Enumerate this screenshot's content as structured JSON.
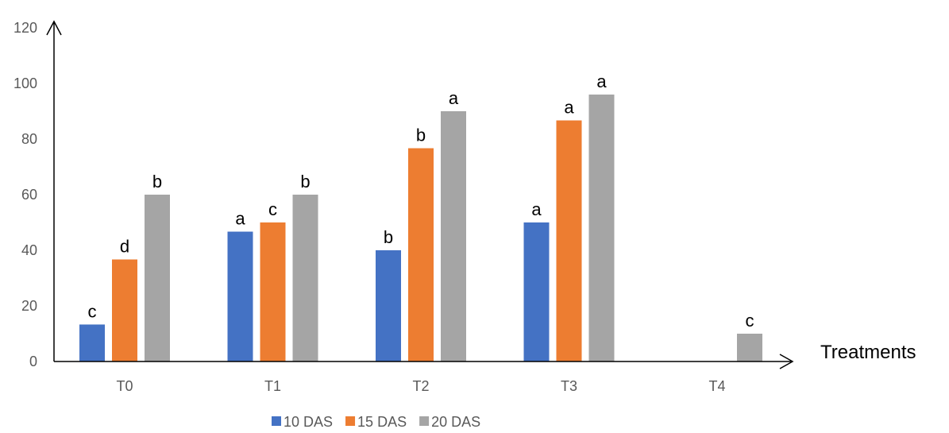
{
  "chart_data": {
    "type": "bar",
    "title": "",
    "xlabel": "Treatments",
    "ylabel": "",
    "ylim": [
      0,
      120
    ],
    "yticks": [
      0,
      20,
      40,
      60,
      80,
      100,
      120
    ],
    "grid": false,
    "legend_position": "bottom",
    "categories": [
      "T0",
      "T1",
      "T2",
      "T3",
      "T4"
    ],
    "series": [
      {
        "name": "10 DAS",
        "color": "#4472C4",
        "values": [
          13.3,
          46.7,
          40,
          50,
          0
        ],
        "labels": [
          "c",
          "a",
          "b",
          "a",
          ""
        ]
      },
      {
        "name": "15 DAS",
        "color": "#ED7D31",
        "values": [
          36.7,
          50,
          76.7,
          86.7,
          0
        ],
        "labels": [
          "d",
          "c",
          "b",
          "a",
          ""
        ]
      },
      {
        "name": "20 DAS",
        "color": "#A5A5A5",
        "values": [
          60,
          60,
          90,
          96,
          10
        ],
        "labels": [
          "b",
          "b",
          "a",
          "a",
          "c"
        ]
      }
    ]
  }
}
